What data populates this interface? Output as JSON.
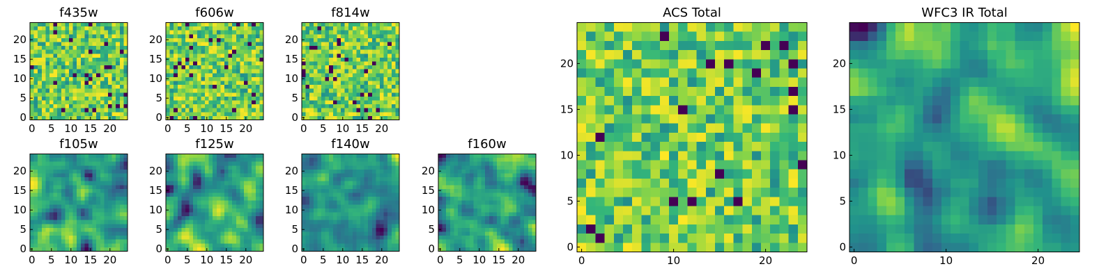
{
  "chart_data": [
    {
      "type": "heatmap",
      "title": "f435w",
      "xticks": [
        0,
        5,
        10,
        15,
        20
      ],
      "yticks": [
        0,
        5,
        10,
        15,
        20
      ],
      "xlim": [
        -0.5,
        24.5
      ],
      "ylim": [
        -0.5,
        24.5
      ],
      "grid_size": 25,
      "texture": "noise",
      "colormap": [
        "#440154",
        "#31688e",
        "#21918c",
        "#35b779",
        "#90d743",
        "#fde725"
      ]
    },
    {
      "type": "heatmap",
      "title": "f606w",
      "xticks": [
        0,
        5,
        10,
        15,
        20
      ],
      "yticks": [
        0,
        5,
        10,
        15,
        20
      ],
      "xlim": [
        -0.5,
        24.5
      ],
      "ylim": [
        -0.5,
        24.5
      ],
      "grid_size": 25,
      "texture": "noise",
      "colormap": [
        "#440154",
        "#31688e",
        "#21918c",
        "#35b779",
        "#90d743",
        "#fde725"
      ]
    },
    {
      "type": "heatmap",
      "title": "f814w",
      "xticks": [
        0,
        5,
        10,
        15,
        20
      ],
      "yticks": [
        0,
        5,
        10,
        15,
        20
      ],
      "xlim": [
        -0.5,
        24.5
      ],
      "ylim": [
        -0.5,
        24.5
      ],
      "grid_size": 25,
      "texture": "noise",
      "colormap": [
        "#440154",
        "#31688e",
        "#21918c",
        "#35b779",
        "#90d743",
        "#fde725"
      ]
    },
    {
      "type": "heatmap",
      "title": "f105w",
      "xticks": [
        0,
        5,
        10,
        15,
        20
      ],
      "yticks": [
        0,
        5,
        10,
        15,
        20
      ],
      "xlim": [
        -0.5,
        24.5
      ],
      "ylim": [
        -0.5,
        24.5
      ],
      "grid_size": 25,
      "texture": "smooth",
      "colormap": [
        "#440154",
        "#31688e",
        "#21918c",
        "#35b779",
        "#90d743",
        "#fde725"
      ]
    },
    {
      "type": "heatmap",
      "title": "f125w",
      "xticks": [
        0,
        5,
        10,
        15,
        20
      ],
      "yticks": [
        0,
        5,
        10,
        15,
        20
      ],
      "xlim": [
        -0.5,
        24.5
      ],
      "ylim": [
        -0.5,
        24.5
      ],
      "grid_size": 25,
      "texture": "smooth",
      "colormap": [
        "#440154",
        "#31688e",
        "#21918c",
        "#35b779",
        "#90d743",
        "#fde725"
      ]
    },
    {
      "type": "heatmap",
      "title": "f140w",
      "xticks": [
        0,
        5,
        10,
        15,
        20
      ],
      "yticks": [
        0,
        5,
        10,
        15,
        20
      ],
      "xlim": [
        -0.5,
        24.5
      ],
      "ylim": [
        -0.5,
        24.5
      ],
      "grid_size": 25,
      "texture": "smooth",
      "colormap": [
        "#440154",
        "#31688e",
        "#21918c",
        "#35b779",
        "#90d743",
        "#fde725"
      ]
    },
    {
      "type": "heatmap",
      "title": "f160w",
      "xticks": [
        0,
        5,
        10,
        15,
        20
      ],
      "yticks": [
        0,
        5,
        10,
        15,
        20
      ],
      "xlim": [
        -0.5,
        24.5
      ],
      "ylim": [
        -0.5,
        24.5
      ],
      "grid_size": 25,
      "texture": "smooth",
      "colormap": [
        "#440154",
        "#31688e",
        "#21918c",
        "#35b779",
        "#90d743",
        "#fde725"
      ]
    },
    {
      "type": "heatmap",
      "title": "ACS Total",
      "xticks": [
        0,
        10,
        20
      ],
      "yticks": [
        0,
        5,
        10,
        15,
        20
      ],
      "xlim": [
        -0.5,
        24.5
      ],
      "ylim": [
        -0.5,
        24.5
      ],
      "grid_size": 25,
      "texture": "noise",
      "colormap": [
        "#440154",
        "#31688e",
        "#21918c",
        "#35b779",
        "#90d743",
        "#fde725"
      ]
    },
    {
      "type": "heatmap",
      "title": "WFC3 IR Total",
      "xticks": [
        0,
        10,
        20
      ],
      "yticks": [
        0,
        5,
        10,
        15,
        20
      ],
      "xlim": [
        -0.5,
        24.5
      ],
      "ylim": [
        -0.5,
        24.5
      ],
      "grid_size": 25,
      "texture": "smooth",
      "colormap": [
        "#440154",
        "#31688e",
        "#21918c",
        "#35b779",
        "#90d743",
        "#fde725"
      ]
    }
  ]
}
